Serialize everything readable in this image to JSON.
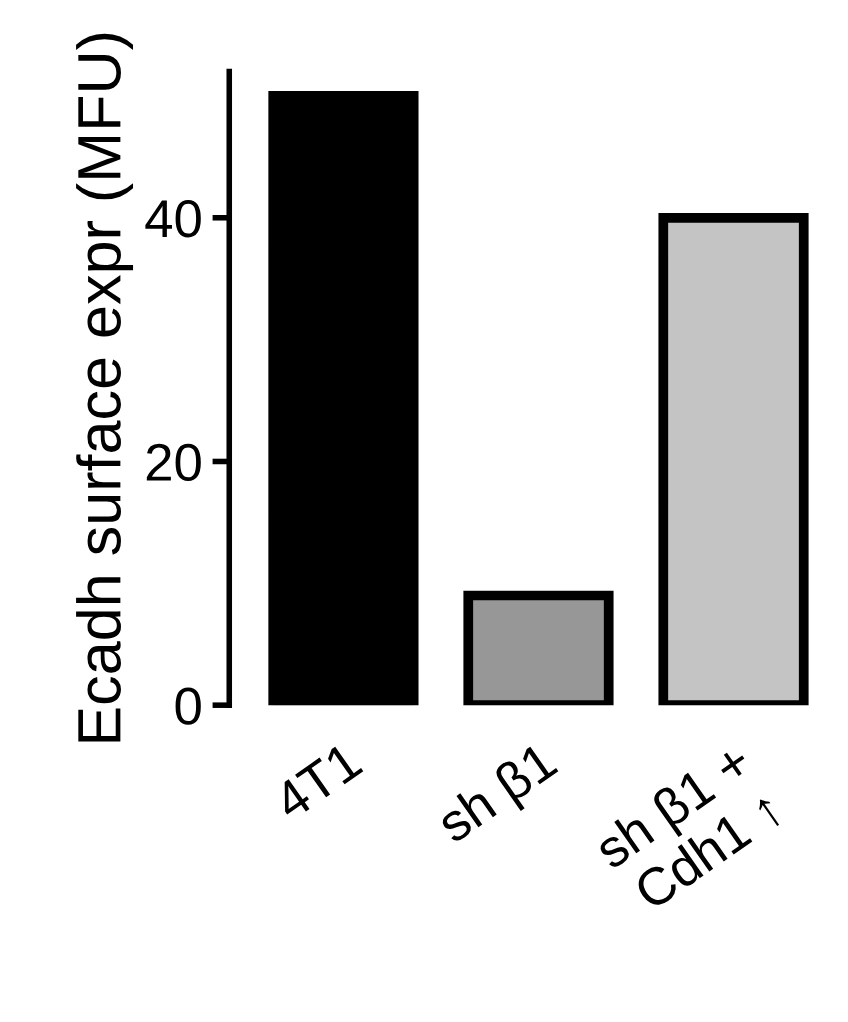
{
  "chart_data": {
    "type": "bar",
    "ylabel": "Ecadh surface expr (MFU)",
    "categories": [
      "4T1",
      "sh β1",
      "sh β1 +\nCdh1 ↑"
    ],
    "values": [
      50,
      9,
      40
    ],
    "colors": [
      "#000000",
      "#979797",
      "#c4c4c4"
    ],
    "ylim": [
      0,
      52
    ],
    "yticks": [
      0,
      20,
      40
    ],
    "grid": false,
    "legend": false
  }
}
